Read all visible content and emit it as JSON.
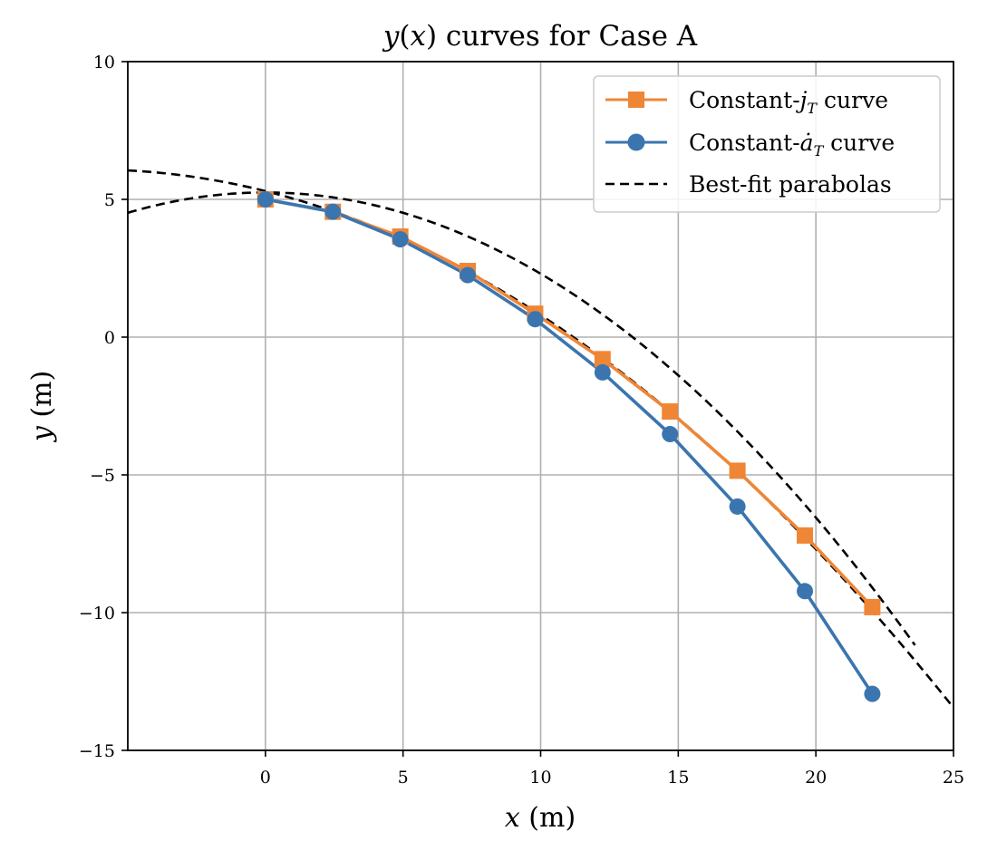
{
  "chart_data": {
    "type": "line",
    "title": "y(x) curves for Case A",
    "xlabel": "x (m)",
    "ylabel": "y (m)",
    "xlim": [
      -5,
      25
    ],
    "ylim": [
      -15,
      10
    ],
    "xticks": [
      0,
      5,
      10,
      15,
      20,
      25
    ],
    "yticks": [
      -15,
      -10,
      -5,
      0,
      5,
      10
    ],
    "xtick_labels": [
      "0",
      "5",
      "10",
      "15",
      "20",
      "25"
    ],
    "ytick_labels": [
      "−15",
      "−10",
      "−5",
      "0",
      "5",
      "10"
    ],
    "grid": true,
    "legend_position": "top-right",
    "series": [
      {
        "name": "Constant-jT curve",
        "marker": "square",
        "color": "#ef8636",
        "x": [
          0.0,
          2.45,
          4.9,
          7.35,
          9.8,
          12.25,
          14.7,
          17.15,
          19.6,
          22.05
        ],
        "y": [
          5.0,
          4.55,
          3.65,
          2.4,
          0.85,
          -0.8,
          -2.7,
          -4.85,
          -7.2,
          -9.8
        ]
      },
      {
        "name": "Constant-aT curve",
        "marker": "circle",
        "color": "#3b75af",
        "x": [
          0.0,
          2.45,
          4.9,
          7.35,
          9.8,
          12.25,
          14.7,
          17.15,
          19.6,
          22.05
        ],
        "y": [
          5.0,
          4.55,
          3.55,
          2.25,
          0.65,
          -1.28,
          -3.52,
          -6.15,
          -9.22,
          -12.95
        ]
      },
      {
        "name": "Best-fit parabolas",
        "style": "dashed",
        "color": "#000000",
        "curves": [
          {
            "coefficients": [
              5.3,
              -0.25,
              -0.02
            ],
            "xrange": [
              -5,
              25
            ]
          },
          {
            "coefficients": [
              5.25,
              -0.0,
              -0.0295
            ],
            "xrange": [
              -5,
              23.6
            ]
          }
        ]
      }
    ]
  }
}
